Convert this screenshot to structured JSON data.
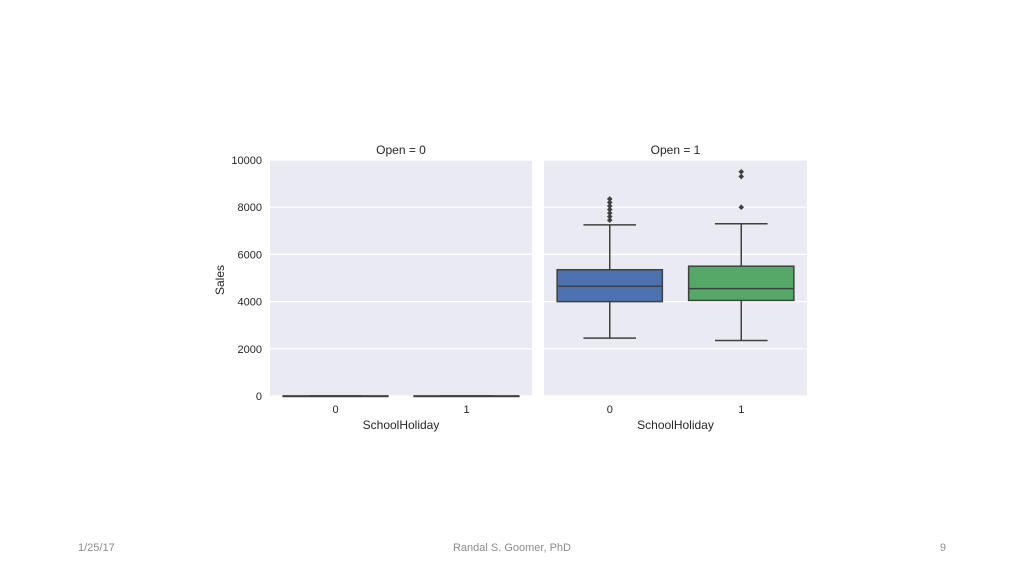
{
  "chart_data": {
    "type": "box",
    "ylabel": "Sales",
    "ylim": [
      0,
      10000
    ],
    "yticks": [
      "0",
      "2000",
      "4000",
      "6000",
      "8000",
      "10000"
    ],
    "ytick_values": [
      0,
      2000,
      4000,
      6000,
      8000,
      10000
    ],
    "grid": true,
    "facets": [
      {
        "title": "Open = 0",
        "xlabel": "SchoolHoliday",
        "categories": [
          "0",
          "1"
        ],
        "boxes": [
          {
            "category": "0",
            "color": "#4c72b0",
            "whisker_low": 0,
            "q1": 0,
            "median": 0,
            "q3": 0,
            "whisker_high": 0,
            "outliers": []
          },
          {
            "category": "1",
            "color": "#55a868",
            "whisker_low": 0,
            "q1": 0,
            "median": 0,
            "q3": 0,
            "whisker_high": 0,
            "outliers": []
          }
        ]
      },
      {
        "title": "Open = 1",
        "xlabel": "SchoolHoliday",
        "categories": [
          "0",
          "1"
        ],
        "boxes": [
          {
            "category": "0",
            "color": "#4c72b0",
            "whisker_low": 2450,
            "q1": 4000,
            "median": 4650,
            "q3": 5350,
            "whisker_high": 7250,
            "outliers": [
              7450,
              7600,
              7750,
              7900,
              8050,
              8200,
              8350
            ]
          },
          {
            "category": "1",
            "color": "#55a868",
            "whisker_low": 2350,
            "q1": 4050,
            "median": 4550,
            "q3": 5500,
            "whisker_high": 7300,
            "outliers": [
              8000,
              9300,
              9500
            ]
          }
        ]
      }
    ]
  },
  "footer": {
    "date": "1/25/17",
    "author": "Randal S. Goomer, PhD",
    "page": "9"
  }
}
